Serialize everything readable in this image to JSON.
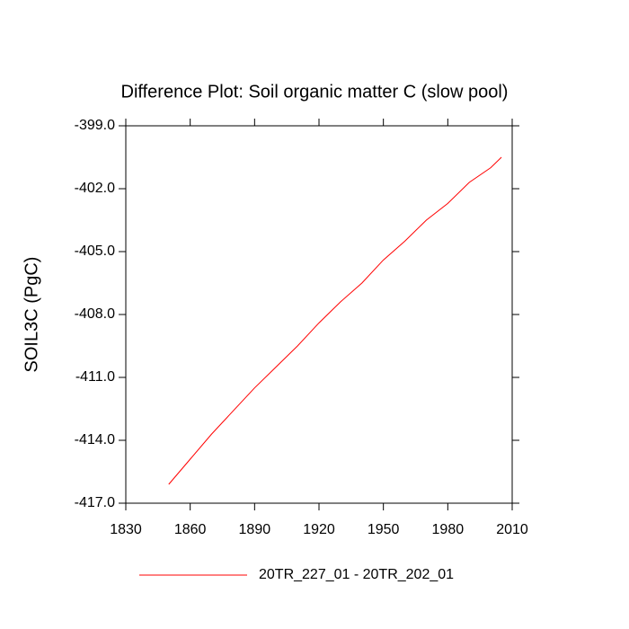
{
  "chart_data": {
    "type": "line",
    "title": "Difference Plot: Soil organic matter C (slow pool)",
    "y_label": "SOIL3C  (PgC)",
    "x": [
      1850,
      1860,
      1870,
      1880,
      1890,
      1900,
      1910,
      1920,
      1930,
      1940,
      1950,
      1960,
      1970,
      1980,
      1990,
      2000,
      2005
    ],
    "series": [
      {
        "name": "20TR_227_01 - 20TR_202_01",
        "color": "#ff0000",
        "values": [
          -416.1,
          -414.9,
          -413.7,
          -412.6,
          -411.5,
          -410.5,
          -409.5,
          -408.4,
          -407.4,
          -406.5,
          -405.4,
          -404.5,
          -403.5,
          -402.7,
          -401.7,
          -401.0,
          -400.5
        ]
      }
    ],
    "xlim": [
      1830,
      2010
    ],
    "xticks": [
      1830,
      1860,
      1890,
      1920,
      1950,
      1980,
      2010
    ],
    "ylim": [
      -417,
      -399
    ],
    "yticks": [
      {
        "value": -417,
        "label": "-417.0"
      },
      {
        "value": -414,
        "label": "-414.0"
      },
      {
        "value": -411,
        "label": "-411.0"
      },
      {
        "value": -408,
        "label": "-408.0"
      },
      {
        "value": -405,
        "label": "-405.0"
      },
      {
        "value": -402,
        "label": "-402.0"
      },
      {
        "value": -399,
        "label": "-399.0"
      }
    ],
    "grid": false,
    "legend": "bottom"
  }
}
